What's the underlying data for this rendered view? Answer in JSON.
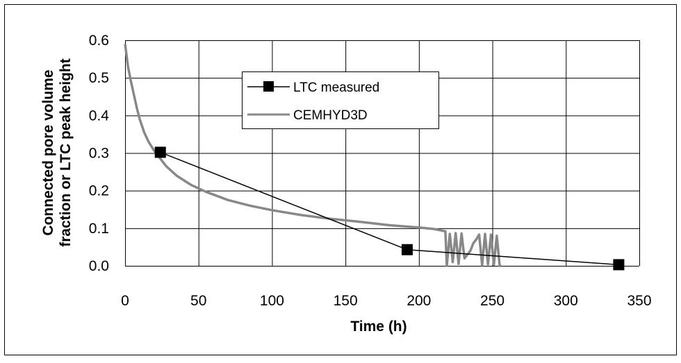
{
  "chart_data": {
    "type": "line",
    "title": "",
    "xlabel": "Time (h)",
    "ylabel_lines": [
      "Connected  pore volume",
      "fraction or LTC peak height"
    ],
    "xlim": [
      0,
      350
    ],
    "ylim": [
      0,
      0.6
    ],
    "x_ticks": [
      0,
      50,
      100,
      150,
      200,
      250,
      300,
      350
    ],
    "x_tick_labels": [
      "0",
      "50",
      "100",
      "150",
      "200",
      "250",
      "300",
      "350"
    ],
    "y_ticks": [
      0,
      0.1,
      0.2,
      0.3,
      0.4,
      0.5,
      0.6
    ],
    "y_tick_labels": [
      "0.0",
      "0.1",
      "0.2",
      "0.3",
      "0.4",
      "0.5",
      "0.6"
    ],
    "grid": true,
    "legend_position": "top-center",
    "series": [
      {
        "name": "LTC measured",
        "color": "#000000",
        "marker": "square",
        "points": [
          [
            24,
            0.302
          ],
          [
            192,
            0.043
          ],
          [
            336,
            0.003
          ]
        ]
      },
      {
        "name": "CEMHYD3D",
        "color": "#888888",
        "marker": "none",
        "points": [
          [
            0,
            0.59
          ],
          [
            2,
            0.53
          ],
          [
            4,
            0.49
          ],
          [
            6,
            0.455
          ],
          [
            8,
            0.42
          ],
          [
            10,
            0.39
          ],
          [
            13,
            0.355
          ],
          [
            16,
            0.33
          ],
          [
            20,
            0.305
          ],
          [
            24,
            0.285
          ],
          [
            28,
            0.265
          ],
          [
            35,
            0.24
          ],
          [
            45,
            0.215
          ],
          [
            55,
            0.197
          ],
          [
            70,
            0.175
          ],
          [
            85,
            0.16
          ],
          [
            100,
            0.148
          ],
          [
            120,
            0.135
          ],
          [
            140,
            0.125
          ],
          [
            160,
            0.117
          ],
          [
            180,
            0.108
          ],
          [
            200,
            0.102
          ],
          [
            210,
            0.098
          ],
          [
            218,
            0.092
          ],
          [
            219,
            0.0
          ],
          [
            221,
            0.085
          ],
          [
            223,
            0.01
          ],
          [
            225,
            0.087
          ],
          [
            227,
            0.005
          ],
          [
            229,
            0.086
          ],
          [
            231,
            0.02
          ],
          [
            233,
            0.03
          ],
          [
            235,
            0.04
          ],
          [
            236,
            0.05
          ],
          [
            237,
            0.06
          ],
          [
            239,
            0.07
          ],
          [
            241,
            0.083
          ],
          [
            243,
            0.002
          ],
          [
            245,
            0.085
          ],
          [
            247,
            0.004
          ],
          [
            249,
            0.083
          ],
          [
            251,
            0.003
          ],
          [
            253,
            0.08
          ],
          [
            255,
            0.0
          ],
          [
            256,
            0.0
          ]
        ]
      }
    ]
  }
}
